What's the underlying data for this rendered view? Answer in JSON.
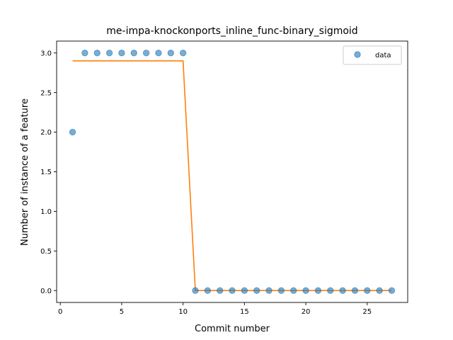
{
  "chart_data": {
    "type": "scatter",
    "title": "me-impa-knockonports_inline_func-binary_sigmoid",
    "xlabel": "Commit number",
    "ylabel": "Number of instance of a feature",
    "xlim": [
      -0.3,
      28.3
    ],
    "ylim": [
      -0.15,
      3.15
    ],
    "xticks": [
      0,
      5,
      10,
      15,
      20,
      25
    ],
    "yticks": [
      0.0,
      0.5,
      1.0,
      1.5,
      2.0,
      2.5,
      3.0
    ],
    "xtick_labels": [
      "0",
      "5",
      "10",
      "15",
      "20",
      "25"
    ],
    "ytick_labels": [
      "0.0",
      "0.5",
      "1.0",
      "1.5",
      "2.0",
      "2.5",
      "3.0"
    ],
    "grid": false,
    "legend_position": "top-right",
    "series": [
      {
        "name": "data",
        "kind": "scatter",
        "color": "#1f77b4",
        "x": [
          1,
          2,
          3,
          4,
          5,
          6,
          7,
          8,
          9,
          10,
          11,
          12,
          13,
          14,
          15,
          16,
          17,
          18,
          19,
          20,
          21,
          22,
          23,
          24,
          25,
          26,
          27
        ],
        "y": [
          2,
          3,
          3,
          3,
          3,
          3,
          3,
          3,
          3,
          3,
          0,
          0,
          0,
          0,
          0,
          0,
          0,
          0,
          0,
          0,
          0,
          0,
          0,
          0,
          0,
          0,
          0
        ]
      },
      {
        "kind": "line",
        "color": "#ff7f0e",
        "x": [
          1,
          10,
          11,
          27
        ],
        "y": [
          2.9,
          2.9,
          0.0,
          0.0
        ]
      }
    ]
  }
}
